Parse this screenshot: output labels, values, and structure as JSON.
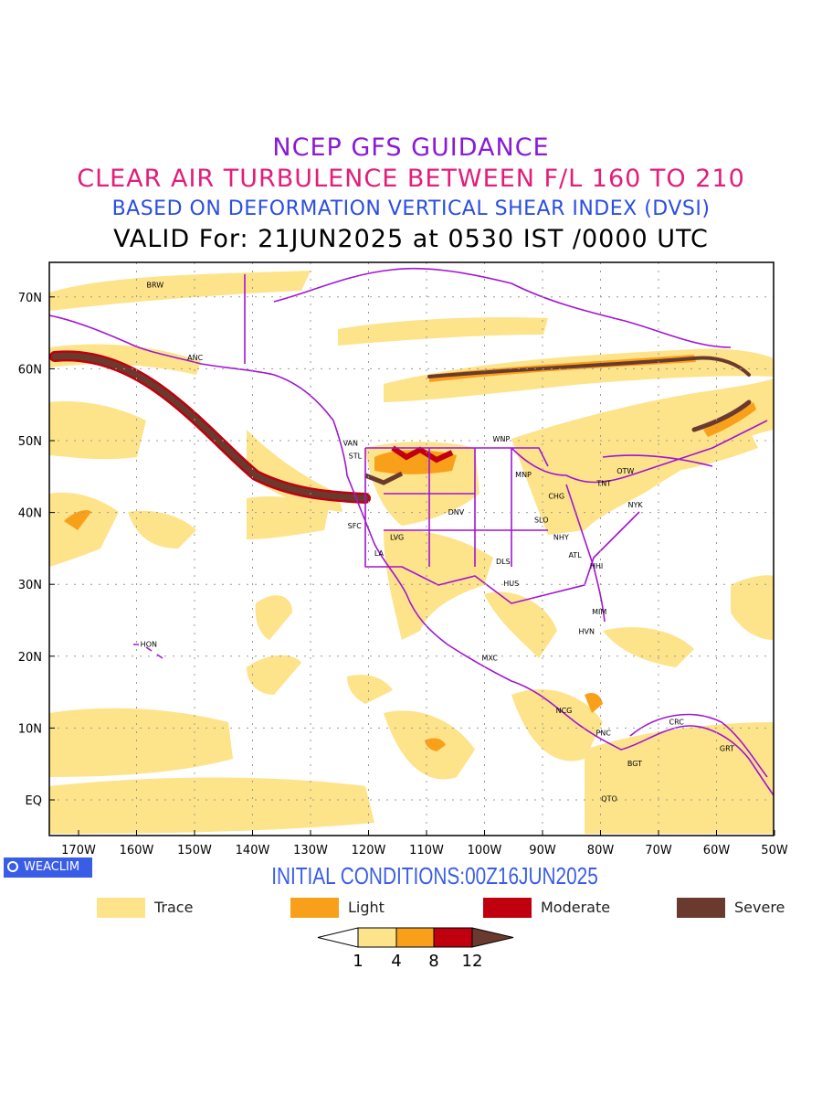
{
  "header": {
    "line1": "NCEP GFS GUIDANCE",
    "line2": "CLEAR AIR TURBULENCE BETWEEN F/L 160 TO 210",
    "line3": "BASED ON DEFORMATION VERTICAL SHEAR INDEX (DVSI)",
    "line4": "VALID For: 21JUN2025 at 0530 IST /0000 UTC",
    "colors": {
      "line1": "#8a1ad6",
      "line2": "#e21d7a",
      "line3": "#2a4ee0",
      "line4": "#000000"
    }
  },
  "map": {
    "lat_labels": [
      "70N",
      "60N",
      "50N",
      "40N",
      "30N",
      "20N",
      "10N",
      "EQ"
    ],
    "lon_labels": [
      "170W",
      "160W",
      "150W",
      "140W",
      "130W",
      "120W",
      "110W",
      "100W",
      "90W",
      "80W",
      "70W",
      "60W",
      "50W"
    ],
    "stations": [
      {
        "code": "BRW",
        "lon": -156.8,
        "lat": 71.3
      },
      {
        "code": "ANC",
        "lon": -149.9,
        "lat": 61.2
      },
      {
        "code": "VAN",
        "lon": -123.1,
        "lat": 49.3
      },
      {
        "code": "STL",
        "lon": -122.3,
        "lat": 47.5
      },
      {
        "code": "WNP",
        "lon": -97.1,
        "lat": 49.9
      },
      {
        "code": "MNP",
        "lon": -93.3,
        "lat": 44.9
      },
      {
        "code": "TNT",
        "lon": -79.4,
        "lat": 43.7
      },
      {
        "code": "OTW",
        "lon": -75.7,
        "lat": 45.4
      },
      {
        "code": "CHG",
        "lon": -87.6,
        "lat": 41.9
      },
      {
        "code": "NYK",
        "lon": -74.0,
        "lat": 40.7
      },
      {
        "code": "DNV",
        "lon": -104.9,
        "lat": 39.7
      },
      {
        "code": "SFC",
        "lon": -122.4,
        "lat": 37.8
      },
      {
        "code": "SLO",
        "lon": -90.2,
        "lat": 38.6
      },
      {
        "code": "LVG",
        "lon": -115.1,
        "lat": 36.2
      },
      {
        "code": "NHY",
        "lon": -86.8,
        "lat": 36.2
      },
      {
        "code": "LA",
        "lon": -118.2,
        "lat": 34.0
      },
      {
        "code": "ATL",
        "lon": -84.4,
        "lat": 33.7
      },
      {
        "code": "DLS",
        "lon": -96.8,
        "lat": 32.8
      },
      {
        "code": "HHI",
        "lon": -80.7,
        "lat": 32.2
      },
      {
        "code": "HUS",
        "lon": -95.4,
        "lat": 29.8
      },
      {
        "code": "MIM",
        "lon": -80.2,
        "lat": 25.8
      },
      {
        "code": "HVN",
        "lon": -82.4,
        "lat": 23.1
      },
      {
        "code": "HON",
        "lon": -157.9,
        "lat": 21.3
      },
      {
        "code": "MXC",
        "lon": -99.1,
        "lat": 19.4
      },
      {
        "code": "NCG",
        "lon": -86.3,
        "lat": 12.1
      },
      {
        "code": "CRC",
        "lon": -66.9,
        "lat": 10.5
      },
      {
        "code": "PNC",
        "lon": -79.5,
        "lat": 9.0
      },
      {
        "code": "GRT",
        "lon": -58.2,
        "lat": 6.8
      },
      {
        "code": "BGT",
        "lon": -74.1,
        "lat": 4.7
      },
      {
        "code": "QTO",
        "lon": -78.5,
        "lat": -0.2
      }
    ],
    "colors": {
      "trace": "#fde38a",
      "light": "#f9a01b",
      "moderate": "#c0000f",
      "severe": "#6b3a2e",
      "boundary": "#a214d4"
    }
  },
  "badge": {
    "label": "WEACLIM",
    "icon": "circle-logo-icon"
  },
  "initial_conditions": "INITIAL CONDITIONS:00Z16JUN2025",
  "legend": [
    {
      "label": "Trace",
      "color": "#fde38a"
    },
    {
      "label": "Light",
      "color": "#f9a01b"
    },
    {
      "label": "Moderate",
      "color": "#c0000f"
    },
    {
      "label": "Severe",
      "color": "#6b3a2e"
    }
  ],
  "colorbar": {
    "ticks": [
      "1",
      "4",
      "8",
      "12"
    ],
    "colors": [
      "#ffffff",
      "#fde38a",
      "#f9a01b",
      "#c0000f",
      "#6b3a2e"
    ]
  }
}
